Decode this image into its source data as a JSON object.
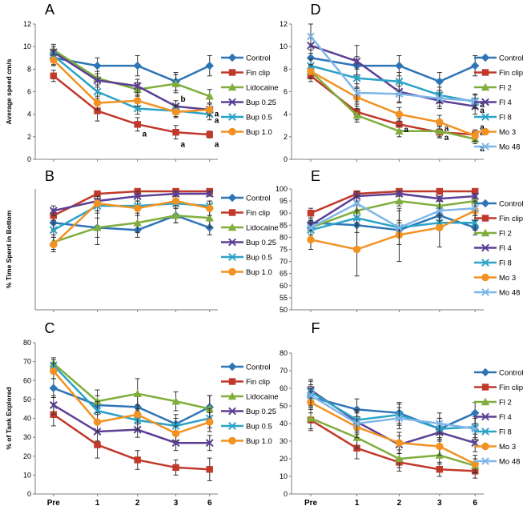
{
  "colors": {
    "control": "#2e75b6",
    "fin_clip": "#c0392b",
    "lidocaine": "#7fae3c",
    "bup_025": "#5b3f94",
    "bup_05": "#2aa3c7",
    "bup_10": "#f29222",
    "fl2": "#7fae3c",
    "fl4": "#5b3f94",
    "fl8": "#2aa3c7",
    "mo3": "#f29222",
    "mo48": "#7fb6e8"
  },
  "x_ticks": [
    "Pre",
    "1",
    "2",
    "3",
    "6"
  ],
  "chart_data": [
    {
      "panel": "A",
      "type": "line",
      "ylabel": "Average speed cm/s",
      "ylim": [
        0,
        12
      ],
      "yticks": [
        0,
        2,
        4,
        6,
        8,
        10,
        12
      ],
      "show_xticks": false,
      "series": [
        {
          "name": "Control",
          "color_key": "control",
          "marker": "diamond",
          "values": [
            9.0,
            8.3,
            8.3,
            6.9,
            8.3
          ],
          "errors": [
            0.6,
            0.7,
            0.9,
            0.8,
            0.9
          ]
        },
        {
          "name": "Fin clip",
          "color_key": "fin_clip",
          "marker": "square",
          "values": [
            7.4,
            4.3,
            3.1,
            2.4,
            2.2
          ],
          "errors": [
            0.5,
            0.9,
            0.6,
            0.6,
            0.3
          ]
        },
        {
          "name": "Lidocaine",
          "color_key": "lidocaine",
          "marker": "triangle",
          "values": [
            9.7,
            7.2,
            6.2,
            6.7,
            5.6
          ],
          "errors": [
            0.5,
            0.6,
            0.6,
            0.8,
            0.6
          ]
        },
        {
          "name": "Bup 0.25",
          "color_key": "bup_025",
          "marker": "x",
          "values": [
            9.5,
            7.0,
            6.5,
            4.7,
            4.4
          ],
          "errors": [
            0.5,
            0.6,
            0.6,
            0.5,
            0.5
          ]
        },
        {
          "name": "Bup 0.5",
          "color_key": "bup_05",
          "marker": "x",
          "values": [
            9.2,
            6.0,
            4.5,
            4.3,
            4.0
          ],
          "errors": [
            0.5,
            0.6,
            0.5,
            0.5,
            0.5
          ]
        },
        {
          "name": "Bup 1.0",
          "color_key": "bup_10",
          "marker": "circle",
          "values": [
            8.8,
            5.0,
            5.2,
            4.2,
            4.4
          ],
          "errors": [
            0.5,
            0.6,
            0.5,
            0.5,
            0.5
          ]
        }
      ],
      "annotations": [
        {
          "text": "a",
          "x": 2,
          "y": 2.3
        },
        {
          "text": "a",
          "x": 3,
          "y": 1.4
        },
        {
          "text": "a",
          "x": 4,
          "y": 1.4
        },
        {
          "text": "b",
          "x": 3,
          "y": 5.4
        },
        {
          "text": "a",
          "x": 4,
          "y": 4.1
        },
        {
          "text": "a",
          "x": 4,
          "y": 3.5
        }
      ]
    },
    {
      "panel": "B",
      "type": "line",
      "ylabel": "% Time Spent in Bottom",
      "ylim": [
        50,
        100
      ],
      "yticks": [],
      "show_xticks": false,
      "series": [
        {
          "name": "Control",
          "color_key": "control",
          "marker": "diamond",
          "values": [
            86,
            84,
            83,
            89,
            84
          ],
          "errors": [
            3,
            4,
            3,
            3,
            3
          ]
        },
        {
          "name": "Fin clip",
          "color_key": "fin_clip",
          "marker": "square",
          "values": [
            89,
            98,
            99,
            99,
            99
          ],
          "errors": [
            2,
            1,
            1,
            1,
            1
          ]
        },
        {
          "name": "Lidocaine",
          "color_key": "lidocaine",
          "marker": "triangle",
          "values": [
            78,
            84,
            86,
            89,
            88
          ],
          "errors": [
            3,
            7,
            4,
            3,
            4
          ]
        },
        {
          "name": "Bup 0.25",
          "color_key": "bup_025",
          "marker": "x",
          "values": [
            91,
            95,
            97,
            98,
            98
          ],
          "errors": [
            2,
            2,
            2,
            1,
            1
          ]
        },
        {
          "name": "Bup 0.5",
          "color_key": "bup_05",
          "marker": "x",
          "values": [
            83,
            93,
            93,
            94,
            93
          ],
          "errors": [
            3,
            3,
            2,
            2,
            2
          ]
        },
        {
          "name": "Bup 1.0",
          "color_key": "bup_10",
          "marker": "circle",
          "values": [
            77,
            94,
            92,
            95,
            92
          ],
          "errors": [
            3,
            3,
            3,
            2,
            3
          ]
        }
      ],
      "annotations": []
    },
    {
      "panel": "C",
      "type": "line",
      "ylabel": "% of Tank Explored",
      "ylim": [
        0,
        80
      ],
      "yticks": [
        0,
        10,
        20,
        30,
        40,
        50,
        60,
        70,
        80
      ],
      "show_xticks": true,
      "series": [
        {
          "name": "Control",
          "color_key": "control",
          "marker": "diamond",
          "values": [
            56,
            47,
            46,
            37,
            46
          ],
          "errors": [
            5,
            5,
            6,
            5,
            6
          ]
        },
        {
          "name": "Fin clip",
          "color_key": "fin_clip",
          "marker": "square",
          "values": [
            42,
            26,
            18,
            14,
            13
          ],
          "errors": [
            6,
            7,
            5,
            4,
            6
          ]
        },
        {
          "name": "Lidocaine",
          "color_key": "lidocaine",
          "marker": "triangle",
          "values": [
            69,
            49,
            53,
            49,
            45
          ],
          "errors": [
            3,
            6,
            8,
            5,
            7
          ]
        },
        {
          "name": "Bup 0.25",
          "color_key": "bup_025",
          "marker": "x",
          "values": [
            47,
            33,
            34,
            27,
            27
          ],
          "errors": [
            5,
            5,
            4,
            4,
            4
          ]
        },
        {
          "name": "Bup 0.5",
          "color_key": "bup_05",
          "marker": "x",
          "values": [
            68,
            44,
            39,
            36,
            40
          ],
          "errors": [
            3,
            5,
            5,
            4,
            5
          ]
        },
        {
          "name": "Bup 1.0",
          "color_key": "bup_10",
          "marker": "circle",
          "values": [
            65,
            38,
            42,
            32,
            38
          ],
          "errors": [
            4,
            5,
            5,
            4,
            5
          ]
        }
      ],
      "annotations": []
    },
    {
      "panel": "D",
      "type": "line",
      "ylabel": "",
      "ylim": [
        0,
        12
      ],
      "yticks": [
        0,
        2,
        4,
        6,
        8,
        10,
        12
      ],
      "show_xticks": false,
      "series": [
        {
          "name": "Control",
          "color_key": "control",
          "marker": "diamond",
          "values": [
            9.0,
            8.3,
            8.3,
            6.9,
            8.3
          ],
          "errors": [
            0.7,
            0.8,
            0.9,
            0.8,
            0.9
          ]
        },
        {
          "name": "Fin clip",
          "color_key": "fin_clip",
          "marker": "square",
          "values": [
            7.4,
            4.2,
            3.1,
            2.4,
            2.2
          ],
          "errors": [
            0.5,
            0.7,
            0.5,
            0.5,
            0.4
          ]
        },
        {
          "name": "Fl 2",
          "color_key": "fl2",
          "marker": "triangle",
          "values": [
            7.8,
            3.9,
            2.5,
            2.5,
            1.8
          ],
          "errors": [
            0.6,
            0.6,
            0.5,
            0.5,
            0.4
          ]
        },
        {
          "name": "Fl 4",
          "color_key": "fl4",
          "marker": "x",
          "values": [
            10.1,
            8.7,
            6.0,
            5.2,
            4.7
          ],
          "errors": [
            0.7,
            1.4,
            1.0,
            0.7,
            0.7
          ]
        },
        {
          "name": "Fl 8",
          "color_key": "fl8",
          "marker": "x",
          "values": [
            8.3,
            7.2,
            6.9,
            5.7,
            5.1
          ],
          "errors": [
            0.6,
            0.8,
            0.8,
            0.7,
            0.6
          ]
        },
        {
          "name": "Mo 3",
          "color_key": "mo3",
          "marker": "circle",
          "values": [
            7.8,
            5.5,
            4.0,
            3.3,
            2.1
          ],
          "errors": [
            0.6,
            0.8,
            0.6,
            0.6,
            0.5
          ]
        },
        {
          "name": "Mo 48",
          "color_key": "mo48",
          "marker": "x",
          "values": [
            10.9,
            5.9,
            5.8,
            5.4,
            5.2
          ],
          "errors": [
            1.2,
            0.8,
            0.7,
            0.7,
            0.6
          ]
        }
      ],
      "annotations": [
        {
          "text": "a",
          "x": 2,
          "y": 2.7
        },
        {
          "text": "a",
          "x": 3,
          "y": 2.8
        },
        {
          "text": "a",
          "x": 3,
          "y": 2.0
        },
        {
          "text": "a",
          "x": 4,
          "y": 4.9
        },
        {
          "text": "a",
          "x": 4,
          "y": 4.4
        },
        {
          "text": "a",
          "x": 4,
          "y": 2.9
        },
        {
          "text": "a",
          "x": 4,
          "y": 2.4
        },
        {
          "text": "a",
          "x": 4,
          "y": 1.0
        }
      ]
    },
    {
      "panel": "E",
      "type": "line",
      "ylabel": "",
      "ylim": [
        50,
        100
      ],
      "yticks": [
        50,
        55,
        60,
        65,
        70,
        75,
        80,
        85,
        90,
        95,
        100
      ],
      "show_xticks": false,
      "series": [
        {
          "name": "Control",
          "color_key": "control",
          "marker": "diamond",
          "values": [
            86,
            85,
            83,
            89,
            84
          ],
          "errors": [
            2,
            3,
            3,
            3,
            3
          ]
        },
        {
          "name": "Fin clip",
          "color_key": "fin_clip",
          "marker": "square",
          "values": [
            90,
            98,
            99,
            99,
            99
          ],
          "errors": [
            2,
            1,
            1,
            1,
            1
          ]
        },
        {
          "name": "Fl 2",
          "color_key": "fl2",
          "marker": "triangle",
          "values": [
            84,
            91,
            95,
            93,
            95
          ],
          "errors": [
            3,
            3,
            2,
            2,
            2
          ]
        },
        {
          "name": "Fl 4",
          "color_key": "fl4",
          "marker": "x",
          "values": [
            85,
            97,
            98,
            96,
            97
          ],
          "errors": [
            2,
            2,
            1,
            1,
            1
          ]
        },
        {
          "name": "Fl 8",
          "color_key": "fl8",
          "marker": "x",
          "values": [
            83,
            88,
            84,
            86,
            86
          ],
          "errors": [
            3,
            3,
            3,
            3,
            3
          ]
        },
        {
          "name": "Mo 3",
          "color_key": "mo3",
          "marker": "circle",
          "values": [
            79,
            75,
            81,
            84,
            91
          ],
          "errors": [
            4,
            11,
            11,
            8,
            4
          ]
        },
        {
          "name": "Mo 48",
          "color_key": "mo48",
          "marker": "x",
          "values": [
            84,
            94,
            84,
            91,
            92
          ],
          "errors": [
            3,
            3,
            7,
            4,
            3
          ]
        }
      ],
      "annotations": []
    },
    {
      "panel": "F",
      "type": "line",
      "ylabel": "",
      "ylim": [
        0,
        80
      ],
      "yticks": [
        0,
        10,
        20,
        30,
        40,
        50,
        60,
        70,
        80
      ],
      "show_xticks": true,
      "series": [
        {
          "name": "Control",
          "color_key": "control",
          "marker": "diamond",
          "values": [
            55,
            48,
            46,
            37,
            46
          ],
          "errors": [
            6,
            6,
            6,
            6,
            6
          ]
        },
        {
          "name": "Fin clip",
          "color_key": "fin_clip",
          "marker": "square",
          "values": [
            42,
            26,
            18,
            14,
            13
          ],
          "errors": [
            6,
            6,
            5,
            4,
            4
          ]
        },
        {
          "name": "Fl 2",
          "color_key": "fl2",
          "marker": "triangle",
          "values": [
            43,
            32,
            20,
            22,
            16
          ],
          "errors": [
            6,
            6,
            5,
            5,
            4
          ]
        },
        {
          "name": "Fl 4",
          "color_key": "fl4",
          "marker": "x",
          "values": [
            59,
            41,
            28,
            35,
            29
          ],
          "errors": [
            6,
            6,
            5,
            5,
            5
          ]
        },
        {
          "name": "Fl 8",
          "color_key": "fl8",
          "marker": "x",
          "values": [
            58,
            42,
            45,
            37,
            38
          ],
          "errors": [
            6,
            6,
            6,
            6,
            6
          ]
        },
        {
          "name": "Mo 3",
          "color_key": "mo3",
          "marker": "circle",
          "values": [
            52,
            38,
            29,
            27,
            17
          ],
          "errors": [
            6,
            6,
            6,
            5,
            5
          ]
        },
        {
          "name": "Mo 48",
          "color_key": "mo48",
          "marker": "x",
          "values": [
            56,
            40,
            43,
            40,
            37
          ],
          "errors": [
            6,
            6,
            6,
            6,
            6
          ]
        }
      ],
      "annotations": []
    }
  ]
}
